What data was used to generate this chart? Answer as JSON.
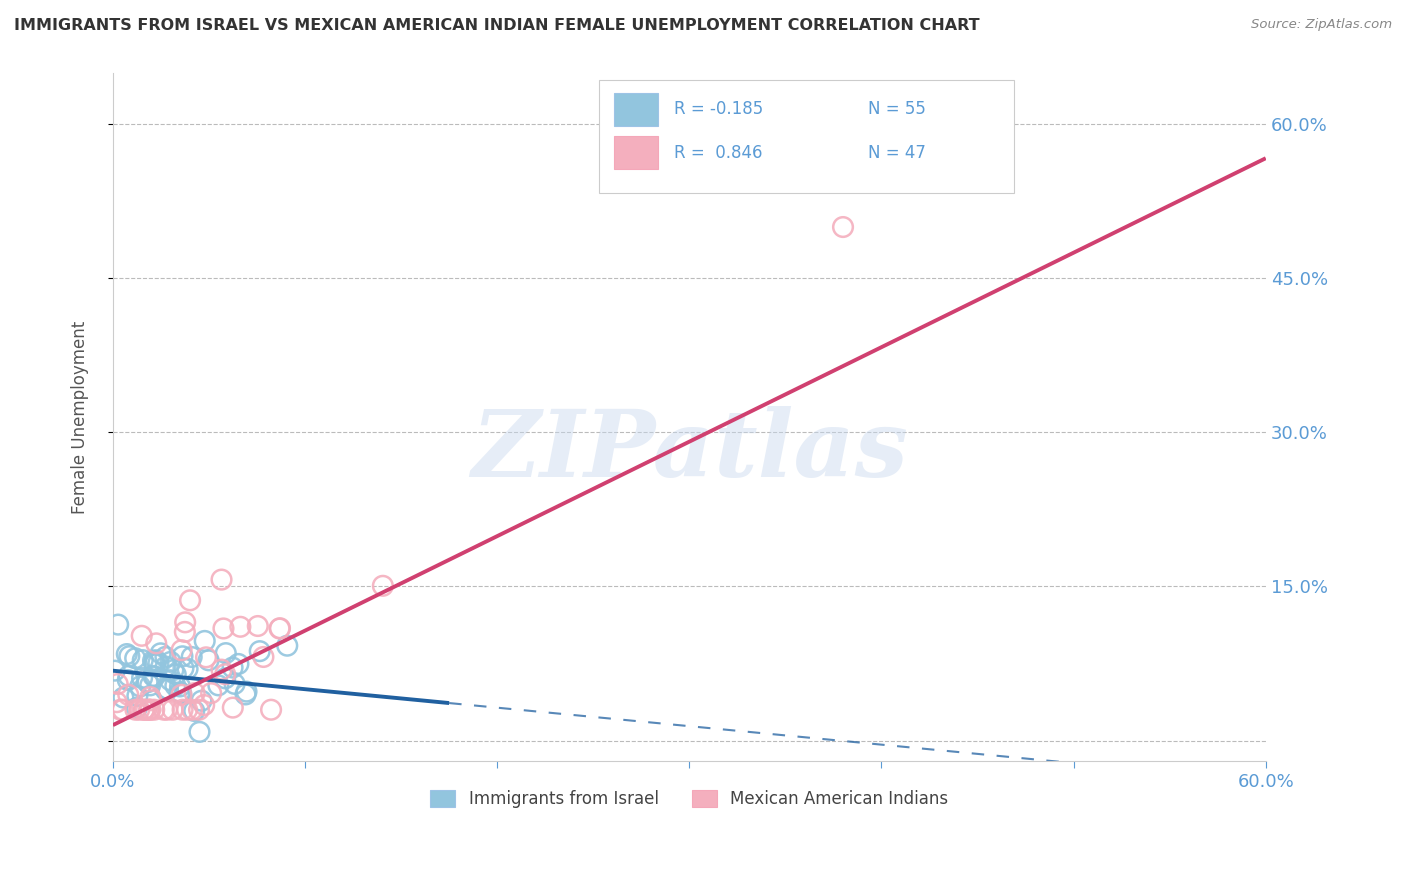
{
  "title": "IMMIGRANTS FROM ISRAEL VS MEXICAN AMERICAN INDIAN FEMALE UNEMPLOYMENT CORRELATION CHART",
  "source": "Source: ZipAtlas.com",
  "ylabel": "Female Unemployment",
  "xlim": [
    0.0,
    0.6
  ],
  "ylim": [
    -0.02,
    0.65
  ],
  "yticks": [
    0.0,
    0.15,
    0.3,
    0.45,
    0.6
  ],
  "ytick_labels": [
    "",
    "15.0%",
    "30.0%",
    "45.0%",
    "60.0%"
  ],
  "blue_color": "#92C5DE",
  "pink_color": "#F4AFBE",
  "blue_line_color": "#2060A0",
  "pink_line_color": "#D04070",
  "axis_color": "#5B9BD5",
  "grid_color": "#BBBBBB",
  "blue_R": -0.185,
  "blue_N": 55,
  "pink_R": 0.846,
  "pink_N": 47,
  "blue_intercept": 0.068,
  "blue_slope": -0.18,
  "pink_intercept": 0.015,
  "pink_slope": 0.92
}
